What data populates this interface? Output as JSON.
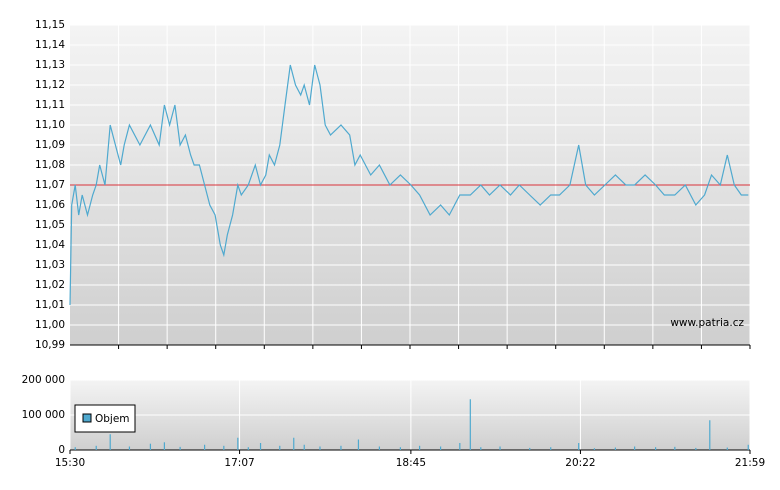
{
  "chart_data": [
    {
      "type": "line",
      "x": [
        "15:30",
        "15:31",
        "15:33",
        "15:35",
        "15:37",
        "15:40",
        "15:43",
        "15:45",
        "15:47",
        "15:50",
        "15:53",
        "15:56",
        "15:59",
        "16:01",
        "16:04",
        "16:10",
        "16:16",
        "16:21",
        "16:24",
        "16:27",
        "16:30",
        "16:33",
        "16:36",
        "16:39",
        "16:41",
        "16:44",
        "16:47",
        "16:50",
        "16:53",
        "16:56",
        "16:58",
        "17:00",
        "17:03",
        "17:06",
        "17:08",
        "17:12",
        "17:16",
        "17:19",
        "17:22",
        "17:24",
        "17:27",
        "17:30",
        "17:33",
        "17:36",
        "17:39",
        "17:42",
        "17:44",
        "17:47",
        "17:50",
        "17:53",
        "17:56",
        "17:59",
        "18:05",
        "18:10",
        "18:13",
        "18:16",
        "18:22",
        "18:27",
        "18:33",
        "18:39",
        "18:45",
        "18:50",
        "18:56",
        "19:02",
        "19:07",
        "19:13",
        "19:19",
        "19:25",
        "19:30",
        "19:36",
        "19:42",
        "19:47",
        "19:53",
        "19:59",
        "20:05",
        "20:10",
        "20:16",
        "20:21",
        "20:25",
        "20:30",
        "20:36",
        "20:42",
        "20:48",
        "20:53",
        "20:59",
        "21:05",
        "21:10",
        "21:16",
        "21:22",
        "21:28",
        "21:33",
        "21:37",
        "21:42",
        "21:46",
        "21:50",
        "21:54",
        "21:58"
      ],
      "series": [
        {
          "color": "#4fa9cf",
          "values": [
            11.01,
            11.06,
            11.07,
            11.055,
            11.065,
            11.055,
            11.065,
            11.07,
            11.08,
            11.07,
            11.1,
            11.09,
            11.08,
            11.09,
            11.1,
            11.09,
            11.1,
            11.09,
            11.11,
            11.1,
            11.11,
            11.09,
            11.095,
            11.085,
            11.08,
            11.08,
            11.07,
            11.06,
            11.055,
            11.04,
            11.035,
            11.045,
            11.055,
            11.07,
            11.065,
            11.07,
            11.08,
            11.07,
            11.075,
            11.085,
            11.08,
            11.09,
            11.11,
            11.13,
            11.12,
            11.115,
            11.12,
            11.11,
            11.13,
            11.12,
            11.1,
            11.095,
            11.1,
            11.095,
            11.08,
            11.085,
            11.075,
            11.08,
            11.07,
            11.075,
            11.07,
            11.065,
            11.055,
            11.06,
            11.055,
            11.065,
            11.065,
            11.07,
            11.065,
            11.07,
            11.065,
            11.07,
            11.065,
            11.06,
            11.065,
            11.065,
            11.07,
            11.09,
            11.07,
            11.065,
            11.07,
            11.075,
            11.07,
            11.07,
            11.075,
            11.07,
            11.065,
            11.065,
            11.07,
            11.06,
            11.065,
            11.075,
            11.07,
            11.085,
            11.07,
            11.065,
            11.065
          ]
        }
      ],
      "reference_line": {
        "value": 11.07,
        "color": "#d9333a"
      },
      "xlim": [
        "15:30",
        "21:59"
      ],
      "ylim": [
        10.99,
        11.15
      ],
      "yticks": [
        {
          "value": 10.99,
          "label": "10,99"
        },
        {
          "value": 11.0,
          "label": "11,00"
        },
        {
          "value": 11.01,
          "label": "11,01"
        },
        {
          "value": 11.02,
          "label": "11,02"
        },
        {
          "value": 11.03,
          "label": "11,03"
        },
        {
          "value": 11.04,
          "label": "11,04"
        },
        {
          "value": 11.05,
          "label": "11,05"
        },
        {
          "value": 11.06,
          "label": "11,06"
        },
        {
          "value": 11.07,
          "label": "11,07"
        },
        {
          "value": 11.08,
          "label": "11,08"
        },
        {
          "value": 11.09,
          "label": "11,09"
        },
        {
          "value": 11.1,
          "label": "11,10"
        },
        {
          "value": 11.11,
          "label": "11,11"
        },
        {
          "value": 11.12,
          "label": "11,12"
        },
        {
          "value": 11.13,
          "label": "11,13"
        },
        {
          "value": 11.14,
          "label": "11,14"
        },
        {
          "value": 11.15,
          "label": "11,15"
        }
      ],
      "grid": true,
      "watermark": "www.patria.cz"
    },
    {
      "type": "bar",
      "x": [
        "15:33",
        "15:45",
        "15:53",
        "16:04",
        "16:16",
        "16:24",
        "16:33",
        "16:47",
        "16:58",
        "17:06",
        "17:12",
        "17:19",
        "17:30",
        "17:38",
        "17:44",
        "17:53",
        "18:05",
        "18:15",
        "18:27",
        "18:39",
        "18:50",
        "19:02",
        "19:13",
        "19:19",
        "19:25",
        "19:36",
        "19:53",
        "20:05",
        "20:21",
        "20:30",
        "20:42",
        "20:53",
        "21:05",
        "21:16",
        "21:28",
        "21:36",
        "21:46",
        "21:58"
      ],
      "series": [
        {
          "name": "Objem",
          "color": "#4fa9cf",
          "values": [
            8000,
            12000,
            45000,
            10000,
            18000,
            22000,
            9000,
            15000,
            12000,
            35000,
            8000,
            20000,
            12000,
            35000,
            15000,
            10000,
            12000,
            30000,
            10000,
            8000,
            12000,
            10000,
            20000,
            145000,
            8000,
            10000,
            6000,
            8000,
            20000,
            5000,
            7000,
            10000,
            8000,
            9000,
            6000,
            85000,
            7000,
            15000
          ]
        }
      ],
      "xlim": [
        "15:30",
        "21:59"
      ],
      "xticks": [
        "15:30",
        "17:07",
        "18:45",
        "20:22",
        "21:59"
      ],
      "ylim": [
        0,
        200000
      ],
      "yticks": [
        0,
        {
          "value": 100000,
          "label": "100 000"
        },
        {
          "value": 200000,
          "label": "200 000"
        }
      ],
      "grid": true,
      "legend": "upper left"
    }
  ]
}
